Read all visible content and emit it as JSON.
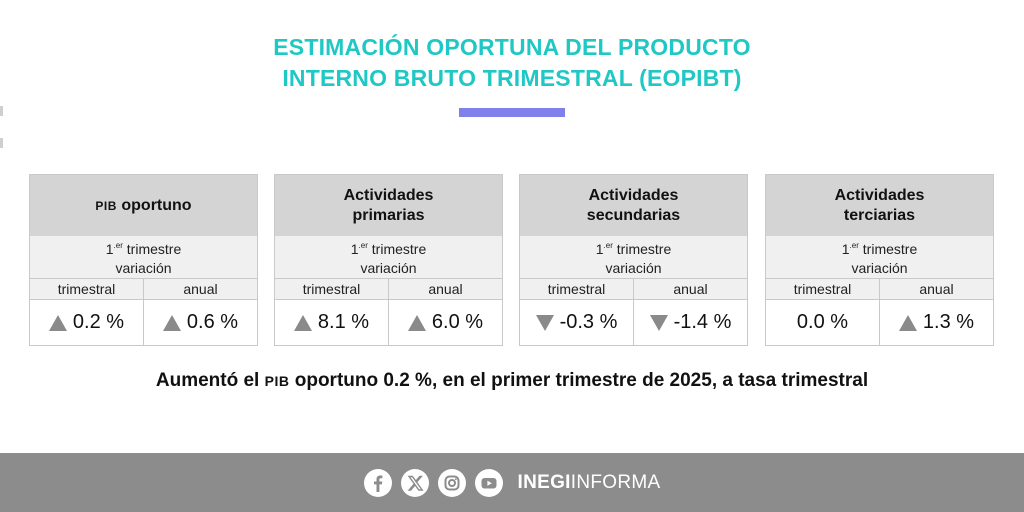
{
  "colors": {
    "title": "#1fc8c5",
    "accent_bar": "#8080ea",
    "header_bg": "#d4d4d4",
    "sub_bg": "#f0f0f0",
    "footer_bg": "#8c8c8c"
  },
  "title": {
    "line1": "ESTIMACIÓN OPORTUNA DEL PRODUCTO",
    "line2": "INTERNO BRUTO TRIMESTRAL (EOPIBT)"
  },
  "cards": [
    {
      "title_abbr": "PIB",
      "title_line1": "oportuno",
      "title_line2": "",
      "period_sup": "1",
      "period_sup_mark": ".er",
      "period_word": "trimestre",
      "variation_label": "variación",
      "col1": "trimestral",
      "col2": "anual",
      "val1": "0.2 %",
      "val1_dir": "up",
      "val2": "0.6 %",
      "val2_dir": "up"
    },
    {
      "title_abbr": "",
      "title_line1": "Actividades",
      "title_line2": "primarias",
      "period_sup": "1",
      "period_sup_mark": ".er",
      "period_word": "trimestre",
      "variation_label": "variación",
      "col1": "trimestral",
      "col2": "anual",
      "val1": "8.1 %",
      "val1_dir": "up",
      "val2": "6.0 %",
      "val2_dir": "up"
    },
    {
      "title_abbr": "",
      "title_line1": "Actividades",
      "title_line2": "secundarias",
      "period_sup": "1",
      "period_sup_mark": ".er",
      "period_word": "trimestre",
      "variation_label": "variación",
      "col1": "trimestral",
      "col2": "anual",
      "val1": "-0.3 %",
      "val1_dir": "down",
      "val2": "-1.4 %",
      "val2_dir": "down"
    },
    {
      "title_abbr": "",
      "title_line1": "Actividades",
      "title_line2": "terciarias",
      "period_sup": "1",
      "period_sup_mark": ".er",
      "period_word": "trimestre",
      "variation_label": "variación",
      "col1": "trimestral",
      "col2": "anual",
      "val1": "0.0 %",
      "val1_dir": "none",
      "val2": "1.3 %",
      "val2_dir": "up"
    }
  ],
  "summary": {
    "before": "Aumentó el",
    "abbr": "PIB",
    "after": "oportuno 0.2 %, en el primer trimestre de 2025, a tasa trimestral"
  },
  "footer": {
    "icons": [
      "facebook-icon",
      "x-icon",
      "instagram-icon",
      "youtube-icon"
    ],
    "brand_bold": "INEGI",
    "brand_light": "INFORMA"
  }
}
